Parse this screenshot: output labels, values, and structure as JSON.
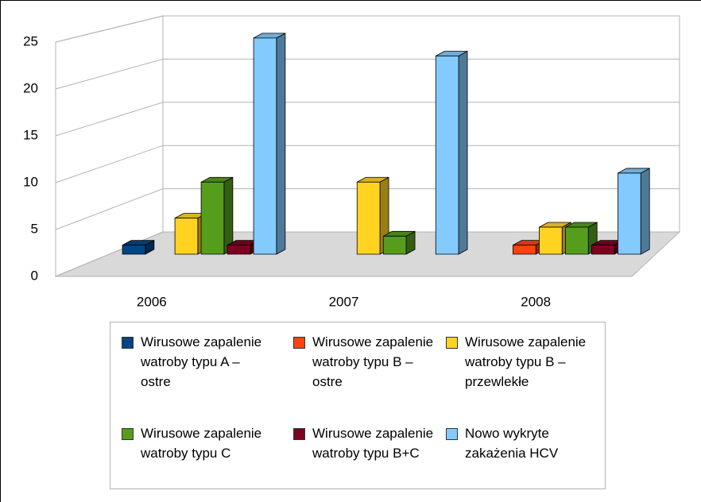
{
  "chart_data": {
    "type": "bar3d",
    "categories": [
      "2006",
      "2007",
      "2008"
    ],
    "series": [
      {
        "name": "Wirusowe zapalenie watroby typu A – ostre",
        "color": "#004586",
        "values": [
          1,
          0,
          0
        ]
      },
      {
        "name": "Wirusowe zapalenie watroby typu B – ostre",
        "color": "#ff420e",
        "values": [
          0,
          0,
          1
        ]
      },
      {
        "name": "Wirusowe zapalenie watroby typu B – przewlekłe",
        "color": "#ffd320",
        "values": [
          4,
          8,
          3
        ]
      },
      {
        "name": "Wirusowe zapalenie watroby typu C",
        "color": "#579d1c",
        "values": [
          8,
          2,
          3
        ]
      },
      {
        "name": "Wirusowe zapalenie watroby typu B+C",
        "color": "#7e0021",
        "values": [
          1,
          0,
          1
        ]
      },
      {
        "name": "Nowo wykryte zakażenia HCV",
        "color": "#83caff",
        "values": [
          24,
          22,
          9
        ]
      }
    ],
    "ylim": [
      0,
      25
    ],
    "yticks": [
      0,
      5,
      10,
      15,
      20,
      25
    ],
    "grid": true,
    "legend": "bottom"
  }
}
